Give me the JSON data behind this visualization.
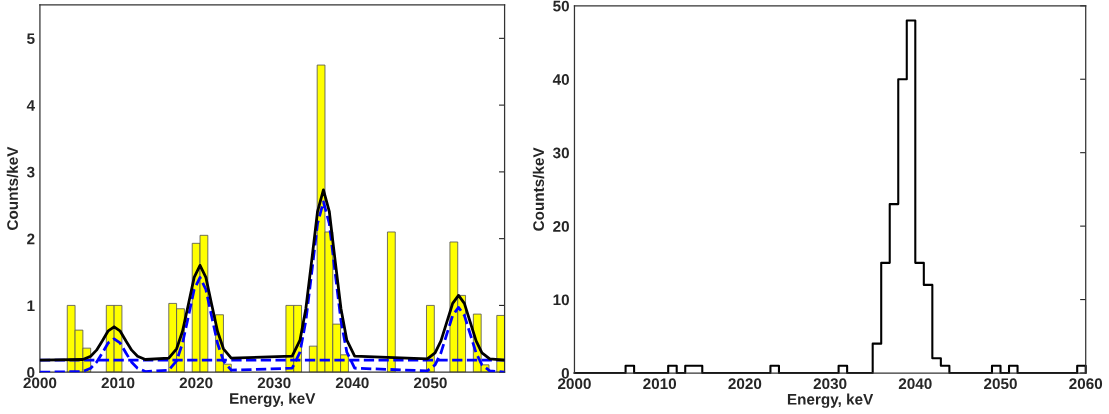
{
  "chart_data": [
    {
      "type": "histogram",
      "xlabel": "Energy, keV",
      "ylabel": "Counts/keV",
      "color": "#ffff00",
      "bins": [
        2003.5,
        2004.5,
        2005.5,
        2006.5,
        2007.5,
        2008.5,
        2009.5,
        2010.5,
        2011.5,
        2012.5,
        2013.5,
        2014.5,
        2015.5,
        2016.5,
        2017.5,
        2018.5,
        2019.5,
        2020.5,
        2021.5,
        2022.5,
        2023.5,
        2024.5,
        2025.5,
        2026.5,
        2027.5,
        2028.5,
        2029.5,
        2030.5,
        2031.5,
        2032.5,
        2033.5,
        2034.5,
        2035.5,
        2036.5,
        2037.5,
        2038.5,
        2039.5,
        2040.5,
        2041.5,
        2042.5,
        2043.5,
        2044.5,
        2045.5,
        2046.5,
        2047.5,
        2048.5,
        2049.5,
        2050.5,
        2051.5,
        2052.5,
        2053.5,
        2054.5,
        2055.5,
        2056.5,
        2057.5,
        2058.5,
        2059.5
      ],
      "values": [
        1.0,
        0.63,
        0.36,
        0,
        0,
        1.0,
        1.0,
        0,
        0,
        0,
        0,
        0,
        0,
        1.03,
        0.95,
        0,
        1.93,
        2.05,
        0,
        0.86,
        0.12,
        0,
        0,
        0,
        0,
        0,
        0,
        0,
        1.0,
        1.0,
        0,
        0.39,
        4.6,
        2.1,
        0.72,
        0.26,
        0,
        0,
        0,
        0,
        0,
        2.1,
        0,
        0,
        0,
        0,
        1.0,
        0,
        0,
        1.95,
        1.15,
        0,
        0.87,
        0.11,
        0,
        0.85
      ],
      "series": [
        {
          "type": "line",
          "color": "#0000ff",
          "line_style": "dashed",
          "x": [
            2000,
            2059.5
          ],
          "values": [
            0.18,
            0.18
          ]
        },
        {
          "type": "line",
          "color": "#0000ff",
          "line_style": "dashed",
          "x": [
            2000,
            2005.5,
            2006.5,
            2007.25,
            2008,
            2008.75,
            2009.5,
            2010.25,
            2011,
            2011.75,
            2012.5,
            2013.5,
            2016.5,
            2017.5,
            2018.25,
            2019,
            2019.75,
            2020.5,
            2021.25,
            2022,
            2022.75,
            2023.5,
            2024.5,
            2032.3,
            2033.3,
            2034.05,
            2034.8,
            2035.55,
            2036.3,
            2037.05,
            2037.8,
            2038.55,
            2039.3,
            2040.3,
            2049.6,
            2050.6,
            2051.35,
            2052.1,
            2052.85,
            2053.6,
            2054.35,
            2055.1,
            2055.85,
            2056.6,
            2057.6,
            2059.5
          ],
          "values": [
            0,
            0.01,
            0.06,
            0.15,
            0.29,
            0.44,
            0.5,
            0.44,
            0.29,
            0.15,
            0.06,
            0.01,
            0.03,
            0.17,
            0.43,
            0.83,
            1.24,
            1.42,
            1.24,
            0.83,
            0.43,
            0.17,
            0.03,
            0.06,
            0.3,
            0.77,
            1.49,
            2.23,
            2.55,
            2.23,
            1.49,
            0.77,
            0.3,
            0.06,
            0.02,
            0.11,
            0.29,
            0.57,
            0.85,
            0.97,
            0.85,
            0.57,
            0.29,
            0.11,
            0.02,
            0
          ]
        },
        {
          "type": "line",
          "color": "#000000",
          "line_style": "solid",
          "x": [
            2000,
            2005.5,
            2006.5,
            2007.25,
            2008,
            2008.75,
            2009.5,
            2010.25,
            2011,
            2011.75,
            2012.5,
            2013.5,
            2016.5,
            2017.5,
            2018.25,
            2019,
            2019.75,
            2020.5,
            2021.25,
            2022,
            2022.75,
            2023.5,
            2024.5,
            2032.3,
            2033.3,
            2034.05,
            2034.8,
            2035.55,
            2036.3,
            2037.05,
            2037.8,
            2038.55,
            2039.3,
            2040.3,
            2049.6,
            2050.6,
            2051.35,
            2052.1,
            2052.85,
            2053.6,
            2054.35,
            2055.1,
            2055.85,
            2056.6,
            2057.6,
            2059.5
          ],
          "values": [
            0.18,
            0.19,
            0.24,
            0.33,
            0.47,
            0.62,
            0.68,
            0.62,
            0.47,
            0.33,
            0.24,
            0.19,
            0.21,
            0.35,
            0.61,
            1.01,
            1.42,
            1.6,
            1.42,
            1.01,
            0.61,
            0.35,
            0.21,
            0.24,
            0.48,
            0.95,
            1.67,
            2.41,
            2.73,
            2.41,
            1.67,
            0.95,
            0.48,
            0.24,
            0.2,
            0.29,
            0.47,
            0.75,
            1.03,
            1.15,
            1.03,
            0.75,
            0.47,
            0.29,
            0.2,
            0.18
          ]
        }
      ],
      "xlim": [
        2000,
        2059.5
      ],
      "xticks": [
        2000,
        2010,
        2020,
        2030,
        2040,
        2050
      ],
      "ylim": [
        0,
        5.5
      ],
      "yticks": [
        0,
        1,
        2,
        3,
        4,
        5
      ],
      "grid": false
    },
    {
      "type": "step",
      "xlabel": "Energy, keV",
      "ylabel": "Counts/keV",
      "color": "#000000",
      "x": [
        2000,
        2001,
        2002,
        2003,
        2004,
        2005,
        2006,
        2007,
        2008,
        2009,
        2010,
        2011,
        2012,
        2013,
        2014,
        2015,
        2016,
        2017,
        2018,
        2019,
        2020,
        2021,
        2022,
        2023,
        2024,
        2025,
        2026,
        2027,
        2028,
        2029,
        2030,
        2031,
        2032,
        2033,
        2034,
        2035,
        2036,
        2037,
        2038,
        2039,
        2040,
        2041,
        2042,
        2043,
        2044,
        2045,
        2046,
        2047,
        2048,
        2049,
        2050,
        2051,
        2052,
        2053,
        2054,
        2055,
        2056,
        2057,
        2058,
        2059,
        2060
      ],
      "values": [
        0,
        0,
        0,
        0,
        0,
        0,
        1,
        0,
        0,
        0,
        0,
        1,
        0,
        1,
        1,
        0,
        0,
        0,
        0,
        0,
        0,
        0,
        0,
        1,
        0,
        0,
        0,
        0,
        0,
        0,
        0,
        1,
        0,
        0,
        0,
        4,
        15,
        23,
        40,
        48,
        15,
        12,
        2,
        1,
        0,
        0,
        0,
        0,
        0,
        1,
        0,
        1,
        0,
        0,
        0,
        0,
        0,
        0,
        0,
        1,
        0
      ],
      "xlim": [
        2000,
        2060
      ],
      "xticks": [
        2000,
        2010,
        2020,
        2030,
        2040,
        2050,
        2060
      ],
      "ylim": [
        0,
        50
      ],
      "yticks": [
        0,
        10,
        20,
        30,
        40,
        50
      ],
      "grid": false
    }
  ]
}
